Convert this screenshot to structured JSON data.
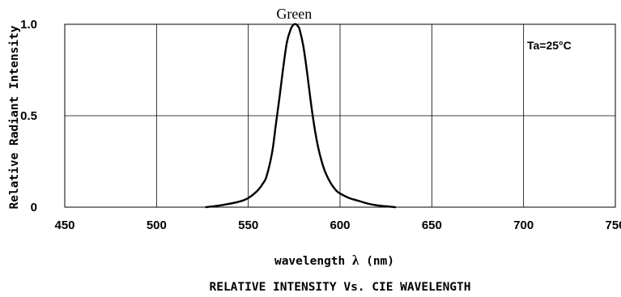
{
  "chart_data": {
    "type": "line",
    "title": "RELATIVE INTENSITY Vs. CIE WAVELENGTH",
    "xlabel": "wavelength λ (nm)",
    "xlabel_parts": {
      "before": "wavelength ",
      "symbol": "λ",
      "after": " (nm)"
    },
    "ylabel": "Relative Radiant Intensity",
    "annotation": "Ta=25°C",
    "xlim": [
      450,
      750
    ],
    "ylim": [
      0,
      1.0
    ],
    "x_ticks": [
      450,
      500,
      550,
      600,
      650,
      700,
      750
    ],
    "x_tick_labels": [
      "450",
      "500",
      "550",
      "600",
      "650",
      "700",
      "750"
    ],
    "y_ticks": [
      0,
      0.5,
      1.0
    ],
    "y_tick_labels": [
      "0",
      "0.5",
      "1.0"
    ],
    "grid": true,
    "series": [
      {
        "name": "Green",
        "x": [
          527,
          535,
          545,
          550,
          555,
          558,
          560,
          563,
          565,
          567,
          569,
          571,
          573,
          574,
          575,
          576,
          577,
          578,
          580,
          582,
          584,
          586,
          588,
          590,
          592,
          595,
          598,
          600,
          605,
          610,
          615,
          620,
          625,
          630
        ],
        "y": [
          0.0,
          0.01,
          0.03,
          0.05,
          0.09,
          0.13,
          0.17,
          0.3,
          0.45,
          0.6,
          0.76,
          0.9,
          0.97,
          0.99,
          1.0,
          1.0,
          0.99,
          0.97,
          0.88,
          0.74,
          0.58,
          0.44,
          0.33,
          0.25,
          0.19,
          0.13,
          0.09,
          0.075,
          0.05,
          0.035,
          0.02,
          0.01,
          0.005,
          0.0
        ]
      }
    ]
  }
}
